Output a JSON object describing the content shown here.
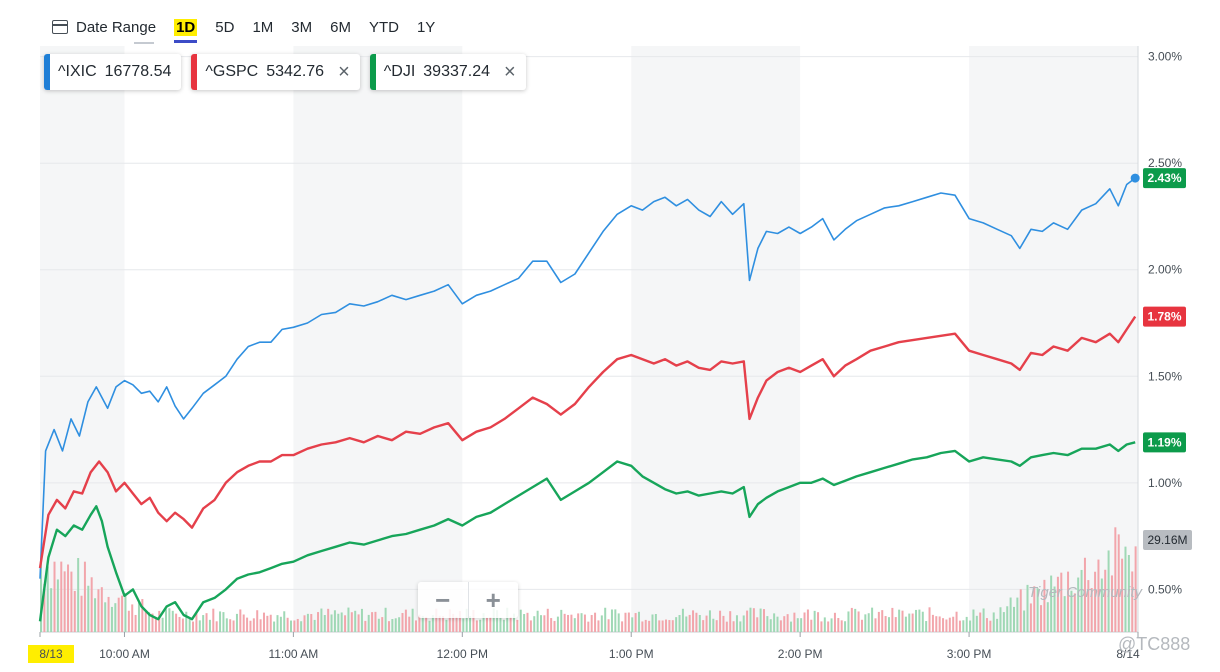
{
  "toolbar": {
    "date_range_label": "Date Range",
    "ranges": [
      {
        "label": "1D",
        "active": true
      },
      {
        "label": "5D",
        "active": false
      },
      {
        "label": "1M",
        "active": false
      },
      {
        "label": "3M",
        "active": false
      },
      {
        "label": "6M",
        "active": false
      },
      {
        "label": "YTD",
        "active": false
      },
      {
        "label": "1Y",
        "active": false
      }
    ]
  },
  "tickers": [
    {
      "symbol": "^IXIC",
      "price": "16778.54",
      "color": "#1f7fd6",
      "removable": false
    },
    {
      "symbol": "^GSPC",
      "price": "5342.76",
      "color": "#e7343f",
      "removable": true
    },
    {
      "symbol": "^DJI",
      "price": "39337.24",
      "color": "#0c9b4b",
      "removable": true
    }
  ],
  "zoom": {
    "minus": "−",
    "plus": "+"
  },
  "watermark": {
    "text": "Tiger Community",
    "handle": "@TC888"
  },
  "chart_data": {
    "type": "line",
    "y_unit": "% change",
    "ylim": [
      0.3,
      3.05
    ],
    "y_ticks": [
      "3.00%",
      "2.50%",
      "2.00%",
      "1.50%",
      "1.00%",
      "0.50%"
    ],
    "y_tick_values": [
      3.0,
      2.5,
      2.0,
      1.5,
      1.0,
      0.5
    ],
    "x_ticks": [
      "8/13",
      "10:00 AM",
      "11:00 AM",
      "12:00 PM",
      "1:00 PM",
      "2:00 PM",
      "3:00 PM",
      "8/14"
    ],
    "x_tick_minutes": [
      0,
      30,
      90,
      150,
      210,
      270,
      330,
      390
    ],
    "grid": true,
    "series": [
      {
        "name": "^IXIC",
        "color": "#2f8fe0",
        "last_label": "2.43%",
        "points": [
          [
            0,
            0.55
          ],
          [
            2,
            1.15
          ],
          [
            5,
            1.25
          ],
          [
            8,
            1.15
          ],
          [
            11,
            1.3
          ],
          [
            14,
            1.22
          ],
          [
            17,
            1.38
          ],
          [
            20,
            1.45
          ],
          [
            24,
            1.35
          ],
          [
            27,
            1.45
          ],
          [
            30,
            1.48
          ],
          [
            33,
            1.46
          ],
          [
            36,
            1.42
          ],
          [
            39,
            1.43
          ],
          [
            42,
            1.38
          ],
          [
            45,
            1.45
          ],
          [
            48,
            1.36
          ],
          [
            51,
            1.3
          ],
          [
            54,
            1.35
          ],
          [
            58,
            1.42
          ],
          [
            62,
            1.46
          ],
          [
            66,
            1.5
          ],
          [
            70,
            1.58
          ],
          [
            74,
            1.64
          ],
          [
            78,
            1.66
          ],
          [
            82,
            1.66
          ],
          [
            86,
            1.72
          ],
          [
            90,
            1.73
          ],
          [
            95,
            1.75
          ],
          [
            100,
            1.79
          ],
          [
            105,
            1.8
          ],
          [
            110,
            1.84
          ],
          [
            115,
            1.83
          ],
          [
            120,
            1.85
          ],
          [
            125,
            1.88
          ],
          [
            130,
            1.86
          ],
          [
            135,
            1.88
          ],
          [
            140,
            1.9
          ],
          [
            145,
            1.93
          ],
          [
            150,
            1.84
          ],
          [
            155,
            1.88
          ],
          [
            160,
            1.9
          ],
          [
            165,
            1.93
          ],
          [
            170,
            1.96
          ],
          [
            175,
            2.04
          ],
          [
            180,
            2.04
          ],
          [
            185,
            1.94
          ],
          [
            190,
            1.98
          ],
          [
            195,
            2.08
          ],
          [
            200,
            2.18
          ],
          [
            205,
            2.26
          ],
          [
            210,
            2.3
          ],
          [
            214,
            2.28
          ],
          [
            218,
            2.32
          ],
          [
            222,
            2.34
          ],
          [
            226,
            2.3
          ],
          [
            230,
            2.33
          ],
          [
            234,
            2.28
          ],
          [
            238,
            2.25
          ],
          [
            242,
            2.32
          ],
          [
            246,
            2.26
          ],
          [
            250,
            2.31
          ],
          [
            252,
            1.95
          ],
          [
            255,
            2.1
          ],
          [
            258,
            2.18
          ],
          [
            262,
            2.17
          ],
          [
            266,
            2.2
          ],
          [
            270,
            2.17
          ],
          [
            274,
            2.2
          ],
          [
            278,
            2.24
          ],
          [
            282,
            2.14
          ],
          [
            286,
            2.19
          ],
          [
            290,
            2.23
          ],
          [
            295,
            2.26
          ],
          [
            300,
            2.29
          ],
          [
            305,
            2.3
          ],
          [
            310,
            2.32
          ],
          [
            315,
            2.34
          ],
          [
            320,
            2.36
          ],
          [
            325,
            2.35
          ],
          [
            330,
            2.24
          ],
          [
            335,
            2.22
          ],
          [
            340,
            2.19
          ],
          [
            345,
            2.16
          ],
          [
            348,
            2.1
          ],
          [
            352,
            2.19
          ],
          [
            356,
            2.18
          ],
          [
            360,
            2.22
          ],
          [
            365,
            2.19
          ],
          [
            370,
            2.28
          ],
          [
            375,
            2.31
          ],
          [
            380,
            2.38
          ],
          [
            383,
            2.3
          ],
          [
            386,
            2.4
          ],
          [
            389,
            2.43
          ]
        ]
      },
      {
        "name": "^GSPC",
        "color": "#e5404b",
        "last_label": "1.78%",
        "points": [
          [
            0,
            0.6
          ],
          [
            3,
            0.85
          ],
          [
            6,
            0.92
          ],
          [
            9,
            0.88
          ],
          [
            12,
            0.96
          ],
          [
            15,
            0.95
          ],
          [
            18,
            1.05
          ],
          [
            21,
            1.1
          ],
          [
            24,
            1.05
          ],
          [
            27,
            0.96
          ],
          [
            30,
            1.0
          ],
          [
            33,
            0.95
          ],
          [
            36,
            0.9
          ],
          [
            39,
            0.93
          ],
          [
            42,
            0.86
          ],
          [
            45,
            0.82
          ],
          [
            48,
            0.86
          ],
          [
            51,
            0.83
          ],
          [
            54,
            0.79
          ],
          [
            58,
            0.88
          ],
          [
            62,
            0.92
          ],
          [
            66,
            1.0
          ],
          [
            70,
            1.05
          ],
          [
            74,
            1.08
          ],
          [
            78,
            1.1
          ],
          [
            82,
            1.1
          ],
          [
            86,
            1.13
          ],
          [
            90,
            1.13
          ],
          [
            95,
            1.16
          ],
          [
            100,
            1.18
          ],
          [
            105,
            1.19
          ],
          [
            110,
            1.21
          ],
          [
            115,
            1.19
          ],
          [
            120,
            1.22
          ],
          [
            125,
            1.2
          ],
          [
            130,
            1.24
          ],
          [
            135,
            1.23
          ],
          [
            140,
            1.26
          ],
          [
            145,
            1.28
          ],
          [
            150,
            1.2
          ],
          [
            155,
            1.24
          ],
          [
            160,
            1.26
          ],
          [
            165,
            1.3
          ],
          [
            170,
            1.35
          ],
          [
            175,
            1.4
          ],
          [
            180,
            1.37
          ],
          [
            185,
            1.32
          ],
          [
            190,
            1.37
          ],
          [
            195,
            1.45
          ],
          [
            200,
            1.52
          ],
          [
            205,
            1.58
          ],
          [
            210,
            1.6
          ],
          [
            214,
            1.58
          ],
          [
            218,
            1.56
          ],
          [
            222,
            1.58
          ],
          [
            226,
            1.55
          ],
          [
            230,
            1.57
          ],
          [
            234,
            1.54
          ],
          [
            238,
            1.53
          ],
          [
            242,
            1.57
          ],
          [
            246,
            1.56
          ],
          [
            250,
            1.57
          ],
          [
            252,
            1.3
          ],
          [
            255,
            1.4
          ],
          [
            258,
            1.48
          ],
          [
            262,
            1.52
          ],
          [
            266,
            1.54
          ],
          [
            270,
            1.52
          ],
          [
            274,
            1.55
          ],
          [
            278,
            1.58
          ],
          [
            282,
            1.5
          ],
          [
            286,
            1.55
          ],
          [
            290,
            1.58
          ],
          [
            295,
            1.62
          ],
          [
            300,
            1.64
          ],
          [
            305,
            1.66
          ],
          [
            310,
            1.67
          ],
          [
            315,
            1.68
          ],
          [
            320,
            1.69
          ],
          [
            325,
            1.7
          ],
          [
            330,
            1.62
          ],
          [
            335,
            1.6
          ],
          [
            340,
            1.58
          ],
          [
            345,
            1.56
          ],
          [
            348,
            1.53
          ],
          [
            352,
            1.61
          ],
          [
            356,
            1.6
          ],
          [
            360,
            1.64
          ],
          [
            365,
            1.62
          ],
          [
            370,
            1.68
          ],
          [
            375,
            1.66
          ],
          [
            380,
            1.7
          ],
          [
            383,
            1.66
          ],
          [
            386,
            1.72
          ],
          [
            389,
            1.78
          ]
        ]
      },
      {
        "name": "^DJI",
        "color": "#17a55a",
        "last_label": "1.19%",
        "points": [
          [
            0,
            0.35
          ],
          [
            3,
            0.65
          ],
          [
            6,
            0.78
          ],
          [
            9,
            0.75
          ],
          [
            12,
            0.8
          ],
          [
            15,
            0.78
          ],
          [
            18,
            0.85
          ],
          [
            20,
            0.89
          ],
          [
            22,
            0.82
          ],
          [
            24,
            0.7
          ],
          [
            27,
            0.58
          ],
          [
            30,
            0.47
          ],
          [
            33,
            0.5
          ],
          [
            36,
            0.42
          ],
          [
            39,
            0.38
          ],
          [
            42,
            0.36
          ],
          [
            45,
            0.42
          ],
          [
            48,
            0.44
          ],
          [
            51,
            0.38
          ],
          [
            54,
            0.36
          ],
          [
            58,
            0.44
          ],
          [
            62,
            0.46
          ],
          [
            66,
            0.5
          ],
          [
            70,
            0.55
          ],
          [
            74,
            0.57
          ],
          [
            78,
            0.58
          ],
          [
            82,
            0.6
          ],
          [
            86,
            0.62
          ],
          [
            90,
            0.63
          ],
          [
            95,
            0.66
          ],
          [
            100,
            0.68
          ],
          [
            105,
            0.7
          ],
          [
            110,
            0.72
          ],
          [
            115,
            0.71
          ],
          [
            120,
            0.73
          ],
          [
            125,
            0.75
          ],
          [
            130,
            0.76
          ],
          [
            135,
            0.78
          ],
          [
            140,
            0.8
          ],
          [
            145,
            0.83
          ],
          [
            150,
            0.8
          ],
          [
            155,
            0.84
          ],
          [
            160,
            0.86
          ],
          [
            165,
            0.9
          ],
          [
            170,
            0.94
          ],
          [
            175,
            0.98
          ],
          [
            180,
            1.02
          ],
          [
            185,
            0.92
          ],
          [
            190,
            0.96
          ],
          [
            195,
            1.0
          ],
          [
            200,
            1.05
          ],
          [
            205,
            1.1
          ],
          [
            210,
            1.08
          ],
          [
            214,
            1.03
          ],
          [
            218,
            1.0
          ],
          [
            222,
            0.97
          ],
          [
            226,
            0.95
          ],
          [
            230,
            0.96
          ],
          [
            234,
            0.94
          ],
          [
            238,
            0.95
          ],
          [
            242,
            0.96
          ],
          [
            246,
            0.95
          ],
          [
            250,
            0.98
          ],
          [
            252,
            0.84
          ],
          [
            255,
            0.9
          ],
          [
            258,
            0.93
          ],
          [
            262,
            0.96
          ],
          [
            266,
            0.98
          ],
          [
            270,
            1.0
          ],
          [
            274,
            1.0
          ],
          [
            278,
            1.02
          ],
          [
            282,
            0.99
          ],
          [
            286,
            1.01
          ],
          [
            290,
            1.03
          ],
          [
            295,
            1.05
          ],
          [
            300,
            1.07
          ],
          [
            305,
            1.09
          ],
          [
            310,
            1.11
          ],
          [
            315,
            1.12
          ],
          [
            320,
            1.14
          ],
          [
            325,
            1.15
          ],
          [
            330,
            1.1
          ],
          [
            335,
            1.12
          ],
          [
            340,
            1.11
          ],
          [
            345,
            1.1
          ],
          [
            348,
            1.08
          ],
          [
            352,
            1.12
          ],
          [
            356,
            1.13
          ],
          [
            360,
            1.14
          ],
          [
            365,
            1.13
          ],
          [
            370,
            1.16
          ],
          [
            375,
            1.16
          ],
          [
            380,
            1.18
          ],
          [
            383,
            1.15
          ],
          [
            386,
            1.18
          ],
          [
            389,
            1.19
          ]
        ]
      }
    ],
    "volume": {
      "last_label": "29.16M"
    }
  }
}
